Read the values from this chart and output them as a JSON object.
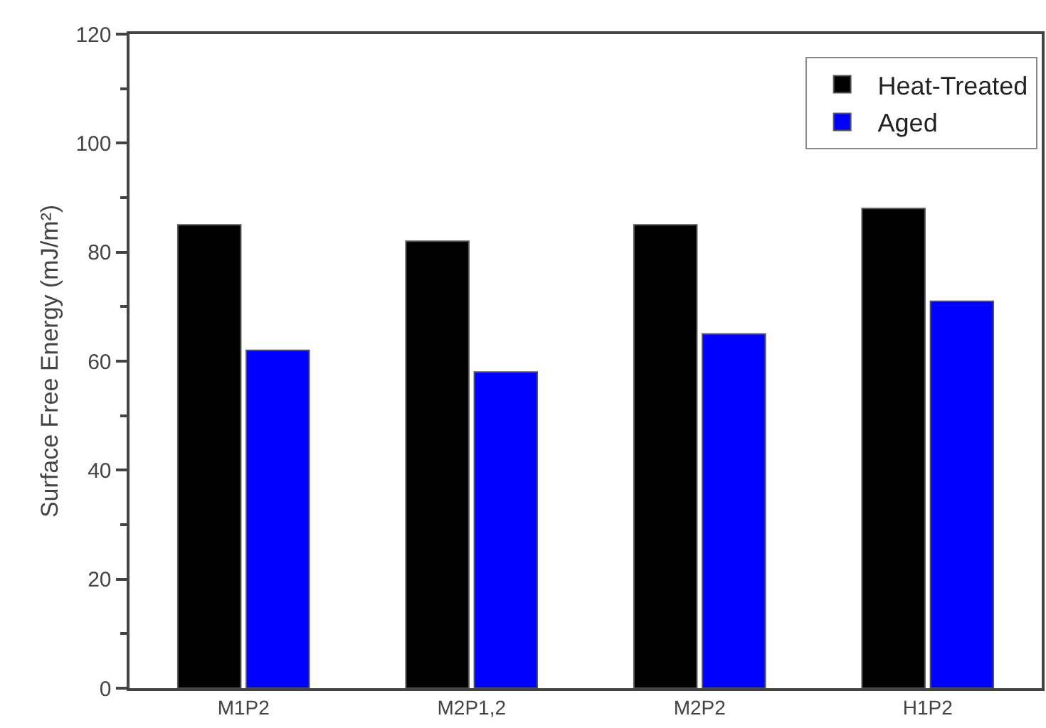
{
  "chart_data": {
    "type": "bar",
    "ylabel": "Surface Free Energy (mJ/m²)",
    "categories": [
      "M1P2",
      "M2P1,2",
      "M2P2",
      "H1P2"
    ],
    "series": [
      {
        "name": "Heat-Treated",
        "color": "#000000",
        "values": [
          85,
          82,
          85,
          88
        ]
      },
      {
        "name": "Aged",
        "color": "#0000ff",
        "values": [
          62,
          58,
          65,
          71
        ]
      }
    ],
    "ylim": [
      0,
      120
    ],
    "yticks": [
      0,
      {
        "value": 10,
        "label": null
      },
      20,
      {
        "value": 30,
        "label": null
      },
      40,
      {
        "value": 50,
        "label": null
      },
      60,
      {
        "value": 70,
        "label": null
      },
      80,
      {
        "value": 90,
        "label": null
      },
      100,
      {
        "value": 110,
        "label": null
      },
      120
    ],
    "legend": "top right"
  }
}
